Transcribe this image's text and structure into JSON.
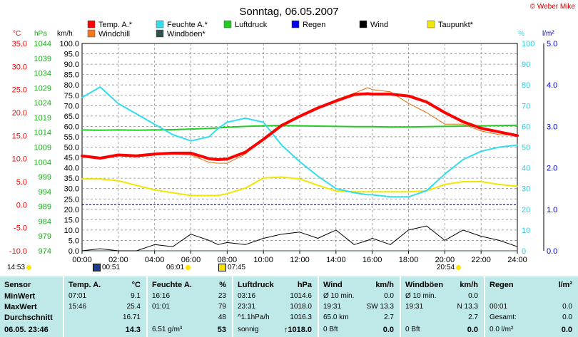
{
  "title": "Sonntag, 06.05.2007",
  "copyright": "© Weber Mike",
  "legend": [
    {
      "label": "Temp. A.*",
      "color": "#ff0000"
    },
    {
      "label": "Windchill",
      "color": "#f07820"
    },
    {
      "label": "Feuchte A.*",
      "color": "#33ddee"
    },
    {
      "label": "Windböen*",
      "color": "#2f4f4f"
    },
    {
      "label": "Luftdruck",
      "color": "#22cc22"
    },
    {
      "label": "Regen",
      "color": "#0000ee"
    },
    {
      "label": "Wind",
      "color": "#000000"
    },
    {
      "label": "Taupunkt*",
      "color": "#f2e600"
    }
  ],
  "axes": {
    "temp_unit": "°C",
    "temp_ticks": [
      "35.0",
      "30.0",
      "25.0",
      "20.0",
      "15.0",
      "10.0",
      "5.0",
      "0.0",
      "-5.0",
      "-10.0"
    ],
    "hpa_unit": "hPa",
    "hpa_ticks": [
      "1044",
      "1039",
      "1034",
      "1029",
      "1024",
      "1019",
      "1014",
      "1009",
      "1004",
      "999",
      "994",
      "989",
      "984",
      "979",
      "974"
    ],
    "kmh_unit": "km/h",
    "kmh_ticks": [
      "100.0",
      "95.0",
      "90.0",
      "85.0",
      "80.0",
      "75.0",
      "70.0",
      "65.0",
      "60.0",
      "55.0",
      "50.0",
      "45.0",
      "40.0",
      "35.0",
      "30.0",
      "25.0",
      "20.0",
      "15.0",
      "10.0",
      "5.0",
      "0.0"
    ],
    "pct_unit": "%",
    "pct_ticks": [
      "100",
      "90",
      "80",
      "70",
      "60",
      "50",
      "40",
      "30",
      "20",
      "10",
      "0"
    ],
    "rain_unit": "l/m²",
    "rain_ticks": [
      "5.0",
      "4.0",
      "3.0",
      "2.0",
      "1.0",
      "0.0"
    ],
    "x_ticks": [
      "00:00",
      "02:00",
      "04:00",
      "06:00",
      "08:00",
      "10:00",
      "12:00",
      "14:00",
      "16:00",
      "18:00",
      "20:00",
      "22:00",
      "24:00"
    ]
  },
  "markers": {
    "left_time": "14:53",
    "wind_max_time": "00:51",
    "sunrise": "06:01",
    "gust_max_time": "07:45",
    "sunset": "20:54"
  },
  "chart_data": {
    "type": "line",
    "xlabel": "",
    "x_range": [
      "00:00",
      "24:00"
    ],
    "x_hours": [
      0,
      1,
      2,
      3,
      4,
      5,
      6,
      7,
      7.5,
      8,
      9,
      10,
      11,
      12,
      13,
      14,
      15,
      15.75,
      16,
      17,
      18,
      19,
      20,
      21,
      22,
      23,
      24
    ],
    "grid": true,
    "series": [
      {
        "name": "Temp. A.*",
        "axis": "°C",
        "values": [
          10.6,
          10.1,
          10.8,
          10.6,
          11.0,
          11.2,
          11.2,
          10.0,
          9.8,
          9.9,
          11.4,
          14.2,
          17.2,
          19.2,
          21.0,
          22.5,
          23.9,
          24.1,
          24.0,
          24.0,
          23.6,
          22.3,
          20.0,
          18.0,
          16.6,
          15.8,
          15.0
        ]
      },
      {
        "name": "Windchill",
        "axis": "°C",
        "values": [
          10.4,
          9.9,
          10.7,
          10.4,
          11.0,
          11.0,
          10.8,
          9.2,
          9.0,
          9.0,
          11.0,
          14.5,
          17.5,
          19.0,
          21.0,
          22.8,
          24.2,
          25.4,
          25.0,
          24.5,
          22.0,
          20.0,
          17.5,
          17.5,
          16.0,
          15.2,
          15.0
        ]
      },
      {
        "name": "Feuchte A.*",
        "axis": "%",
        "values": [
          74,
          79,
          71,
          66,
          61,
          56,
          53,
          55,
          59,
          62,
          64,
          62,
          51,
          43,
          36,
          30,
          28,
          27,
          27,
          26,
          26,
          29,
          37,
          44,
          48,
          50,
          51
        ]
      },
      {
        "name": "Luftdruck",
        "axis": "hPa",
        "values": [
          1014.8,
          1014.7,
          1014.8,
          1014.7,
          1014.8,
          1014.9,
          1015.1,
          1015.3,
          1015.5,
          1015.7,
          1016.0,
          1016.2,
          1016.3,
          1016.2,
          1016.1,
          1016.0,
          1015.9,
          1015.9,
          1015.9,
          1015.8,
          1015.8,
          1015.9,
          1016.0,
          1016.1,
          1016.2,
          1016.3,
          1016.4
        ]
      },
      {
        "name": "Taupunkt*",
        "axis": "°C",
        "values": [
          5.6,
          5.6,
          5.2,
          4.2,
          3.2,
          2.6,
          2.0,
          2.0,
          2.0,
          2.4,
          3.6,
          5.8,
          6.0,
          5.6,
          4.2,
          3.0,
          2.8,
          2.8,
          2.8,
          2.8,
          2.8,
          3.0,
          4.4,
          5.0,
          5.0,
          4.4,
          4.0
        ]
      },
      {
        "name": "Wind",
        "axis": "km/h",
        "values": [
          0,
          1,
          0,
          0,
          3,
          2,
          8,
          5,
          3,
          4,
          3,
          6,
          8,
          9,
          6,
          10,
          3,
          5,
          6,
          3,
          10,
          12,
          5,
          10,
          7,
          5,
          2
        ]
      },
      {
        "name": "Windböen*",
        "axis": "km/h",
        "values": [
          0,
          0,
          0,
          0,
          0,
          0,
          0,
          0,
          0,
          0,
          0,
          0,
          0,
          0,
          0,
          0,
          0,
          0,
          0,
          0,
          0,
          0,
          0,
          0,
          0,
          0,
          0
        ]
      },
      {
        "name": "Regen",
        "axis": "l/m²",
        "values": [
          0,
          0,
          0,
          0,
          0,
          0,
          0,
          0,
          0,
          0,
          0,
          0,
          0,
          0,
          0,
          0,
          0,
          0,
          0,
          0,
          0,
          0,
          0,
          0,
          0,
          0,
          0
        ]
      }
    ]
  },
  "table": {
    "label_col": {
      "h": "Sensor",
      "rows": [
        "MinWert",
        "MaxWert",
        "Durchschnitt",
        "06.05. 23:46"
      ]
    },
    "cols": [
      {
        "h1": "Temp. A.",
        "h2": "°C",
        "rows": [
          [
            "07:01",
            "9.1"
          ],
          [
            "15:46",
            "25.4"
          ],
          [
            "",
            "16.71"
          ],
          [
            "",
            "14.3"
          ]
        ]
      },
      {
        "h1": "Feuchte A.",
        "h2": "%",
        "rows": [
          [
            "16:16",
            "23"
          ],
          [
            "01:01",
            "79"
          ],
          [
            "",
            "48"
          ],
          [
            "6.51 g/m³",
            "53"
          ]
        ]
      },
      {
        "h1": "Luftdruck",
        "h2": "hPa",
        "rows": [
          [
            "03:16",
            "1014.6"
          ],
          [
            "23:31",
            "1018.0"
          ],
          [
            "^1.1hPa/h",
            "1016.3"
          ],
          [
            "sonnig",
            "↑1018.0"
          ]
        ]
      },
      {
        "h1": "Wind",
        "h2": "km/h",
        "rows": [
          [
            "Ø 10 min.",
            "0.0"
          ],
          [
            "19:31",
            "SW 13.3"
          ],
          [
            "65.0 km",
            "2.7"
          ],
          [
            "0 Bft",
            "0.0"
          ]
        ]
      },
      {
        "h1": "Windböen",
        "h2": "km/h",
        "rows": [
          [
            "Ø 10 min.",
            "0.0"
          ],
          [
            "19:31",
            "N 13.3"
          ],
          [
            "",
            "2.7"
          ],
          [
            "0 Bft",
            "0.0"
          ]
        ]
      },
      {
        "h1": "Regen",
        "h2": "l/m²",
        "rows": [
          [
            "",
            ""
          ],
          [
            "00:01",
            "0.0"
          ],
          [
            "Gesamt:",
            "0.0"
          ],
          [
            "0.0 l/m²",
            "0.0"
          ]
        ]
      }
    ]
  }
}
